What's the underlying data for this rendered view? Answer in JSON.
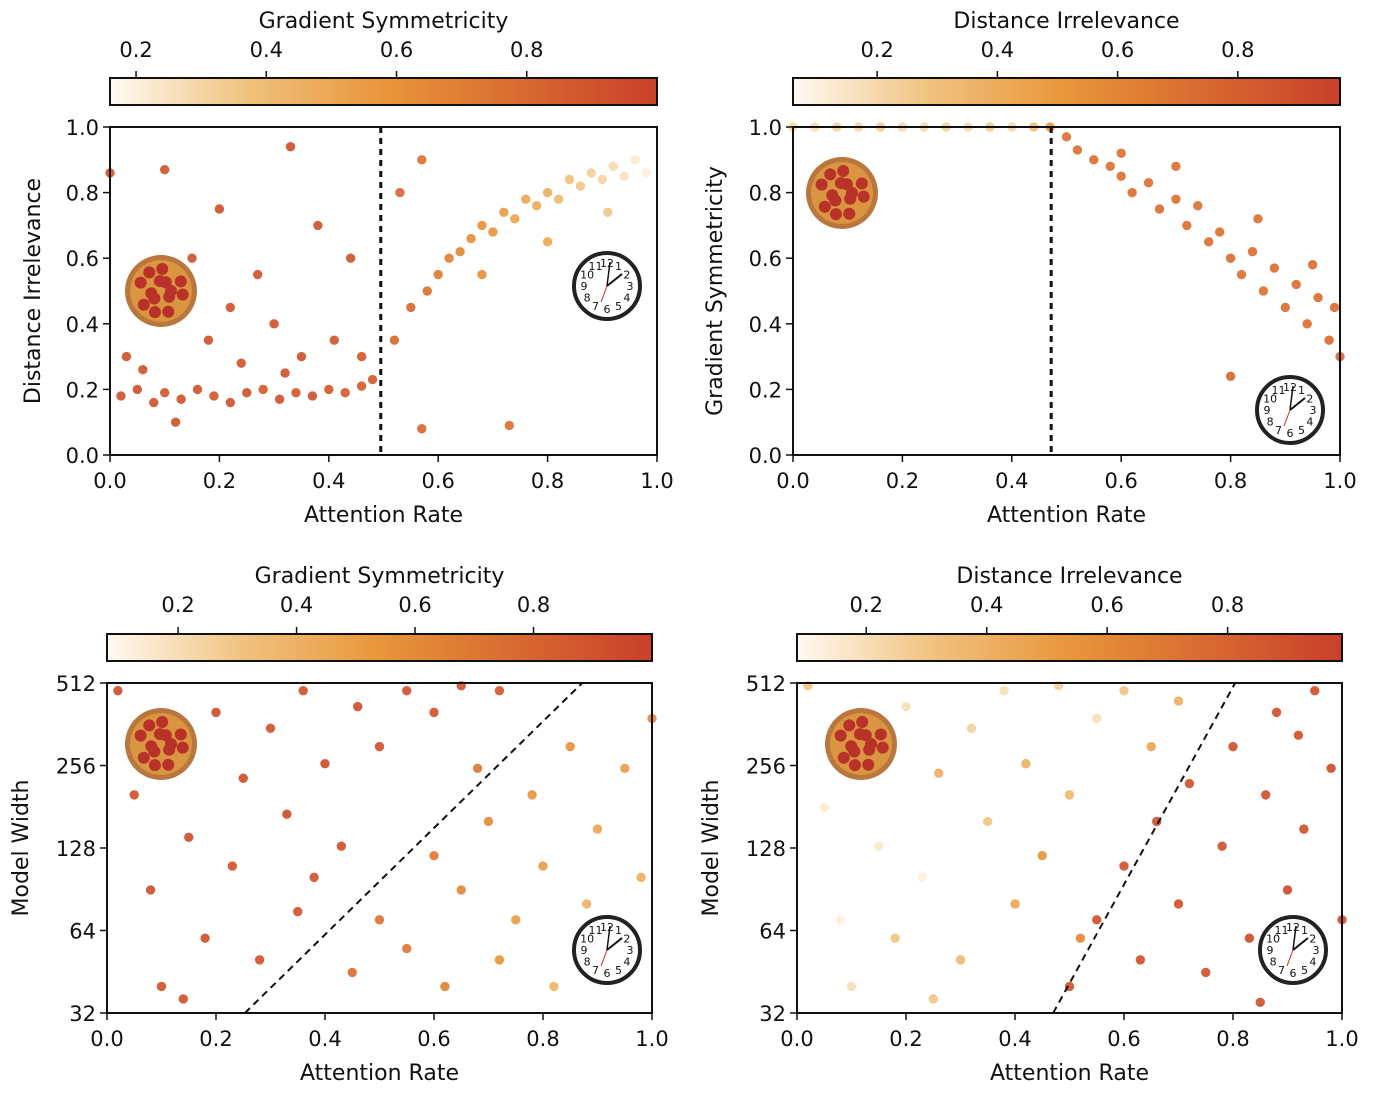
{
  "colormap": {
    "stops": [
      "#fffaf2",
      "#f0c27e",
      "#e8963a",
      "#d86a30",
      "#c9402a"
    ]
  },
  "chart_data": [
    {
      "type": "scatter",
      "xlabel": "Attention Rate",
      "ylabel": "Distance Irrelevance",
      "colorbar_label": "Gradient Symmetricity",
      "colorbar_ticks": [
        "0.2",
        "0.4",
        "0.6",
        "0.8"
      ],
      "colorbar_range": [
        0.16,
        1.0
      ],
      "xlim": [
        0,
        1
      ],
      "ylim": [
        0,
        1
      ],
      "y_scale": "linear",
      "xticks": [
        "0.0",
        "0.2",
        "0.4",
        "0.6",
        "0.8",
        "1.0"
      ],
      "yticks": [
        "0.0",
        "0.2",
        "0.4",
        "0.6",
        "0.8",
        "1.0"
      ],
      "threshold_line": {
        "style": "dotted-vertical",
        "x": 0.495
      },
      "icons": [
        "pizza-icon",
        "clock-icon"
      ],
      "points": [
        [
          0.02,
          0.18,
          0.9
        ],
        [
          0.05,
          0.2,
          0.92
        ],
        [
          0.08,
          0.16,
          0.9
        ],
        [
          0.1,
          0.19,
          0.88
        ],
        [
          0.13,
          0.17,
          0.9
        ],
        [
          0.16,
          0.2,
          0.9
        ],
        [
          0.19,
          0.18,
          0.88
        ],
        [
          0.22,
          0.16,
          0.9
        ],
        [
          0.25,
          0.19,
          0.9
        ],
        [
          0.28,
          0.2,
          0.87
        ],
        [
          0.31,
          0.17,
          0.9
        ],
        [
          0.34,
          0.19,
          0.88
        ],
        [
          0.37,
          0.18,
          0.9
        ],
        [
          0.4,
          0.2,
          0.88
        ],
        [
          0.43,
          0.19,
          0.87
        ],
        [
          0.46,
          0.21,
          0.86
        ],
        [
          0.48,
          0.23,
          0.85
        ],
        [
          0.03,
          0.3,
          0.9
        ],
        [
          0.07,
          0.45,
          0.92
        ],
        [
          0.1,
          0.87,
          0.9
        ],
        [
          0.0,
          0.86,
          0.92
        ],
        [
          0.15,
          0.6,
          0.9
        ],
        [
          0.18,
          0.35,
          0.9
        ],
        [
          0.2,
          0.75,
          0.92
        ],
        [
          0.24,
          0.28,
          0.9
        ],
        [
          0.27,
          0.55,
          0.9
        ],
        [
          0.3,
          0.4,
          0.9
        ],
        [
          0.33,
          0.94,
          0.92
        ],
        [
          0.35,
          0.3,
          0.9
        ],
        [
          0.38,
          0.7,
          0.9
        ],
        [
          0.41,
          0.35,
          0.88
        ],
        [
          0.44,
          0.6,
          0.9
        ],
        [
          0.46,
          0.3,
          0.88
        ],
        [
          0.12,
          0.1,
          0.9
        ],
        [
          0.06,
          0.26,
          0.9
        ],
        [
          0.22,
          0.45,
          0.9
        ],
        [
          0.32,
          0.25,
          0.9
        ],
        [
          0.52,
          0.35,
          0.8
        ],
        [
          0.55,
          0.45,
          0.8
        ],
        [
          0.57,
          0.08,
          0.8
        ],
        [
          0.58,
          0.5,
          0.75
        ],
        [
          0.6,
          0.55,
          0.7
        ],
        [
          0.62,
          0.6,
          0.68
        ],
        [
          0.64,
          0.62,
          0.65
        ],
        [
          0.66,
          0.66,
          0.62
        ],
        [
          0.68,
          0.7,
          0.6
        ],
        [
          0.7,
          0.68,
          0.58
        ],
        [
          0.72,
          0.74,
          0.55
        ],
        [
          0.74,
          0.72,
          0.52
        ],
        [
          0.76,
          0.78,
          0.5
        ],
        [
          0.78,
          0.76,
          0.48
        ],
        [
          0.8,
          0.8,
          0.45
        ],
        [
          0.82,
          0.78,
          0.42
        ],
        [
          0.84,
          0.84,
          0.38
        ],
        [
          0.86,
          0.82,
          0.35
        ],
        [
          0.88,
          0.86,
          0.32
        ],
        [
          0.9,
          0.84,
          0.3
        ],
        [
          0.92,
          0.88,
          0.28
        ],
        [
          0.94,
          0.85,
          0.25
        ],
        [
          0.96,
          0.9,
          0.22
        ],
        [
          0.98,
          0.86,
          0.2
        ],
        [
          0.73,
          0.09,
          0.75
        ],
        [
          0.68,
          0.55,
          0.6
        ],
        [
          0.8,
          0.65,
          0.5
        ],
        [
          0.91,
          0.74,
          0.35
        ],
        [
          0.53,
          0.8,
          0.8
        ],
        [
          0.57,
          0.9,
          0.75
        ]
      ]
    },
    {
      "type": "scatter",
      "xlabel": "Attention Rate",
      "ylabel": "Gradient Symmetricity",
      "colorbar_label": "Distance Irrelevance",
      "colorbar_ticks": [
        "0.2",
        "0.4",
        "0.6",
        "0.8"
      ],
      "colorbar_range": [
        0.06,
        0.97
      ],
      "xlim": [
        0,
        1
      ],
      "ylim": [
        0,
        1
      ],
      "y_scale": "linear",
      "xticks": [
        "0.0",
        "0.2",
        "0.4",
        "0.6",
        "0.8",
        "1.0"
      ],
      "yticks": [
        "0.0",
        "0.2",
        "0.4",
        "0.6",
        "0.8",
        "1.0"
      ],
      "threshold_line": {
        "style": "dotted-vertical",
        "x": 0.472
      },
      "icons": [
        "pizza-icon",
        "clock-icon"
      ],
      "points": [
        [
          0.0,
          1.0,
          0.2
        ],
        [
          0.04,
          1.0,
          0.18
        ],
        [
          0.08,
          1.0,
          0.22
        ],
        [
          0.12,
          1.0,
          0.2
        ],
        [
          0.16,
          1.0,
          0.25
        ],
        [
          0.2,
          1.0,
          0.2
        ],
        [
          0.24,
          1.0,
          0.18
        ],
        [
          0.28,
          1.0,
          0.22
        ],
        [
          0.32,
          1.0,
          0.2
        ],
        [
          0.36,
          1.0,
          0.25
        ],
        [
          0.4,
          1.0,
          0.2
        ],
        [
          0.44,
          1.0,
          0.3
        ],
        [
          0.47,
          1.0,
          0.5
        ],
        [
          0.5,
          0.97,
          0.7
        ],
        [
          0.52,
          0.93,
          0.7
        ],
        [
          0.55,
          0.9,
          0.72
        ],
        [
          0.58,
          0.88,
          0.7
        ],
        [
          0.6,
          0.85,
          0.7
        ],
        [
          0.62,
          0.8,
          0.72
        ],
        [
          0.65,
          0.83,
          0.7
        ],
        [
          0.67,
          0.75,
          0.72
        ],
        [
          0.7,
          0.78,
          0.7
        ],
        [
          0.72,
          0.7,
          0.72
        ],
        [
          0.74,
          0.76,
          0.7
        ],
        [
          0.76,
          0.65,
          0.72
        ],
        [
          0.78,
          0.68,
          0.7
        ],
        [
          0.8,
          0.6,
          0.72
        ],
        [
          0.82,
          0.55,
          0.7
        ],
        [
          0.84,
          0.62,
          0.72
        ],
        [
          0.86,
          0.5,
          0.7
        ],
        [
          0.88,
          0.57,
          0.72
        ],
        [
          0.9,
          0.45,
          0.72
        ],
        [
          0.92,
          0.52,
          0.72
        ],
        [
          0.94,
          0.4,
          0.72
        ],
        [
          0.96,
          0.48,
          0.72
        ],
        [
          0.98,
          0.35,
          0.74
        ],
        [
          1.0,
          0.3,
          0.75
        ],
        [
          0.99,
          0.45,
          0.72
        ],
        [
          0.8,
          0.24,
          0.75
        ],
        [
          0.7,
          0.88,
          0.7
        ],
        [
          0.6,
          0.92,
          0.7
        ],
        [
          0.85,
          0.72,
          0.7
        ],
        [
          0.95,
          0.58,
          0.72
        ]
      ]
    },
    {
      "type": "scatter",
      "xlabel": "Attention Rate",
      "ylabel": "Model Width",
      "colorbar_label": "Gradient Symmetricity",
      "colorbar_ticks": [
        "0.2",
        "0.4",
        "0.6",
        "0.8"
      ],
      "colorbar_range": [
        0.08,
        1.0
      ],
      "xlim": [
        0,
        1
      ],
      "ylim": [
        32,
        512
      ],
      "y_scale": "log2",
      "xticks": [
        "0.0",
        "0.2",
        "0.4",
        "0.6",
        "0.8",
        "1.0"
      ],
      "yticks": [
        "32",
        "64",
        "128",
        "256",
        "512"
      ],
      "threshold_line": {
        "style": "dashed",
        "from": [
          0.253,
          32
        ],
        "to": [
          0.872,
          512
        ]
      },
      "icons": [
        "pizza-icon",
        "clock-icon"
      ],
      "points": [
        [
          0.02,
          480,
          0.92
        ],
        [
          0.05,
          200,
          0.9
        ],
        [
          0.08,
          90,
          0.92
        ],
        [
          0.1,
          40,
          0.9
        ],
        [
          0.12,
          300,
          0.9
        ],
        [
          0.15,
          140,
          0.92
        ],
        [
          0.18,
          60,
          0.9
        ],
        [
          0.2,
          400,
          0.92
        ],
        [
          0.23,
          110,
          0.9
        ],
        [
          0.25,
          230,
          0.92
        ],
        [
          0.28,
          50,
          0.9
        ],
        [
          0.3,
          350,
          0.9
        ],
        [
          0.33,
          170,
          0.92
        ],
        [
          0.36,
          480,
          0.9
        ],
        [
          0.4,
          260,
          0.92
        ],
        [
          0.43,
          130,
          0.9
        ],
        [
          0.46,
          420,
          0.92
        ],
        [
          0.5,
          300,
          0.9
        ],
        [
          0.55,
          480,
          0.9
        ],
        [
          0.6,
          400,
          0.9
        ],
        [
          0.65,
          500,
          0.88
        ],
        [
          0.72,
          480,
          0.85
        ],
        [
          0.14,
          36,
          0.9
        ],
        [
          0.35,
          75,
          0.9
        ],
        [
          0.38,
          100,
          0.88
        ],
        [
          0.45,
          45,
          0.75
        ],
        [
          0.5,
          70,
          0.72
        ],
        [
          0.55,
          55,
          0.7
        ],
        [
          0.6,
          120,
          0.68
        ],
        [
          0.62,
          40,
          0.65
        ],
        [
          0.65,
          90,
          0.62
        ],
        [
          0.7,
          160,
          0.6
        ],
        [
          0.72,
          50,
          0.55
        ],
        [
          0.75,
          70,
          0.5
        ],
        [
          0.78,
          200,
          0.55
        ],
        [
          0.8,
          110,
          0.5
        ],
        [
          0.82,
          40,
          0.38
        ],
        [
          0.85,
          300,
          0.55
        ],
        [
          0.88,
          80,
          0.4
        ],
        [
          0.9,
          150,
          0.45
        ],
        [
          0.93,
          45,
          0.3
        ],
        [
          0.95,
          250,
          0.5
        ],
        [
          0.98,
          100,
          0.4
        ],
        [
          1.0,
          380,
          0.6
        ],
        [
          0.68,
          250,
          0.7
        ]
      ]
    },
    {
      "type": "scatter",
      "xlabel": "Attention Rate",
      "ylabel": "Model Width",
      "colorbar_label": "Distance Irrelevance",
      "colorbar_ticks": [
        "0.2",
        "0.4",
        "0.6",
        "0.8"
      ],
      "colorbar_range": [
        0.085,
        0.99
      ],
      "xlim": [
        0,
        1
      ],
      "ylim": [
        32,
        512
      ],
      "y_scale": "log2",
      "xticks": [
        "0.0",
        "0.2",
        "0.4",
        "0.6",
        "0.8",
        "1.0"
      ],
      "yticks": [
        "32",
        "64",
        "128",
        "256",
        "512"
      ],
      "threshold_line": {
        "style": "dashed",
        "from": [
          0.47,
          32
        ],
        "to": [
          0.804,
          512
        ]
      },
      "icons": [
        "pizza-icon",
        "clock-icon"
      ],
      "points": [
        [
          0.02,
          500,
          0.3
        ],
        [
          0.05,
          180,
          0.15
        ],
        [
          0.08,
          70,
          0.12
        ],
        [
          0.1,
          40,
          0.2
        ],
        [
          0.12,
          300,
          0.25
        ],
        [
          0.15,
          130,
          0.15
        ],
        [
          0.18,
          60,
          0.3
        ],
        [
          0.2,
          420,
          0.2
        ],
        [
          0.23,
          100,
          0.12
        ],
        [
          0.26,
          240,
          0.4
        ],
        [
          0.3,
          50,
          0.35
        ],
        [
          0.32,
          350,
          0.25
        ],
        [
          0.35,
          160,
          0.3
        ],
        [
          0.38,
          480,
          0.2
        ],
        [
          0.4,
          80,
          0.45
        ],
        [
          0.42,
          260,
          0.4
        ],
        [
          0.45,
          120,
          0.55
        ],
        [
          0.48,
          500,
          0.25
        ],
        [
          0.5,
          200,
          0.35
        ],
        [
          0.55,
          380,
          0.2
        ],
        [
          0.6,
          480,
          0.3
        ],
        [
          0.65,
          300,
          0.45
        ],
        [
          0.7,
          440,
          0.4
        ],
        [
          0.52,
          60,
          0.6
        ],
        [
          0.25,
          36,
          0.3
        ],
        [
          0.5,
          40,
          0.88
        ],
        [
          0.55,
          70,
          0.9
        ],
        [
          0.6,
          110,
          0.88
        ],
        [
          0.63,
          50,
          0.9
        ],
        [
          0.66,
          160,
          0.88
        ],
        [
          0.7,
          80,
          0.9
        ],
        [
          0.72,
          220,
          0.88
        ],
        [
          0.75,
          45,
          0.9
        ],
        [
          0.78,
          130,
          0.9
        ],
        [
          0.8,
          300,
          0.88
        ],
        [
          0.83,
          60,
          0.92
        ],
        [
          0.86,
          200,
          0.9
        ],
        [
          0.88,
          400,
          0.88
        ],
        [
          0.9,
          90,
          0.92
        ],
        [
          0.93,
          150,
          0.9
        ],
        [
          0.95,
          480,
          0.9
        ],
        [
          0.98,
          250,
          0.92
        ],
        [
          1.0,
          70,
          0.9
        ],
        [
          0.85,
          35,
          0.9
        ],
        [
          0.92,
          330,
          0.9
        ]
      ]
    }
  ]
}
